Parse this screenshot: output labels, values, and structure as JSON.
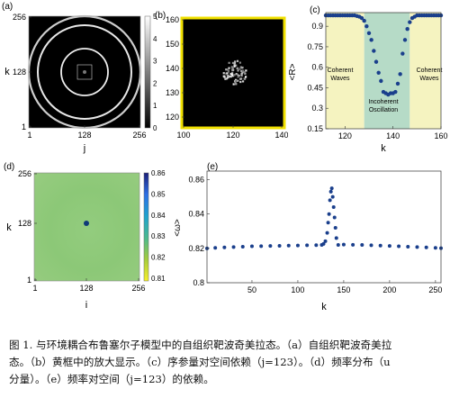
{
  "figure": {
    "panels": {
      "a": {
        "label": "(a)",
        "xlabel": "j",
        "ylabel": "k",
        "xticks": [
          "1",
          "128",
          "256"
        ],
        "yticks": [
          "1",
          "128",
          "256"
        ],
        "colorbar_ticks": [
          "0",
          "1",
          "2",
          "3",
          "4",
          "5"
        ]
      },
      "b": {
        "label": "(b)",
        "xticks": [
          "100",
          "120",
          "140"
        ],
        "yticks": [
          "120",
          "130",
          "140",
          "150",
          "160"
        ],
        "frame_color": "#f0e000"
      },
      "c": {
        "label": "(c)",
        "xlabel": "k",
        "ylabel": "<R>",
        "xticks": [
          "120",
          "140",
          "160"
        ],
        "yticks": [
          "0.15",
          "0.3",
          "0.45",
          "0.6",
          "0.75",
          "0.9"
        ],
        "annotations": {
          "left": [
            "Coherent",
            "Waves"
          ],
          "middle": [
            "Incoherent",
            "Oscillation"
          ],
          "right": [
            "Coherent",
            "Waves"
          ]
        },
        "shade_colors": {
          "coherent": "#f5f3c0",
          "incoherent": "#b6dbc7"
        }
      },
      "d": {
        "label": "(d)",
        "xlabel": "i",
        "ylabel": "k",
        "xticks": [
          "1",
          "128",
          "256"
        ],
        "yticks": [
          "1",
          "128",
          "256"
        ],
        "colorbar_ticks": [
          "0.86",
          "0.85",
          "0.84",
          "0.83",
          "0.82",
          "0.81"
        ]
      },
      "e": {
        "label": "(e)",
        "xlabel": "k",
        "ylabel": "<ω>",
        "xticks": [
          "50",
          "100",
          "150",
          "200",
          "250"
        ],
        "yticks": [
          "0.8",
          "0.82",
          "0.84",
          "0.86"
        ]
      }
    },
    "colors": {
      "marker": "#1a3f8c",
      "heat_fill": "#8ec97a"
    }
  },
  "chart_data": [
    {
      "panel": "c",
      "type": "scatter",
      "xlabel": "k",
      "ylabel": "<R>",
      "xlim": [
        112,
        160
      ],
      "ylim": [
        0.15,
        1.0
      ],
      "x": [
        112,
        113,
        114,
        115,
        116,
        117,
        118,
        119,
        120,
        121,
        122,
        123,
        124,
        125,
        126,
        127,
        128,
        129,
        130,
        131,
        132,
        133,
        134,
        135,
        136,
        137,
        138,
        139,
        140,
        141,
        142,
        143,
        144,
        145,
        146,
        147,
        148,
        149,
        150,
        151,
        152,
        153,
        154,
        155,
        156,
        157,
        158,
        159,
        160
      ],
      "y": [
        0.98,
        0.98,
        0.98,
        0.98,
        0.98,
        0.98,
        0.98,
        0.98,
        0.98,
        0.98,
        0.98,
        0.98,
        0.98,
        0.975,
        0.97,
        0.96,
        0.94,
        0.9,
        0.85,
        0.8,
        0.72,
        0.64,
        0.56,
        0.5,
        0.42,
        0.41,
        0.4,
        0.41,
        0.41,
        0.42,
        0.48,
        0.55,
        0.7,
        0.8,
        0.88,
        0.93,
        0.96,
        0.97,
        0.98,
        0.98,
        0.98,
        0.98,
        0.98,
        0.98,
        0.98,
        0.98,
        0.98,
        0.98,
        0.98
      ]
    },
    {
      "panel": "e",
      "type": "scatter",
      "xlabel": "k",
      "ylabel": "<ω>",
      "xlim": [
        1,
        256
      ],
      "ylim": [
        0.8,
        0.865
      ],
      "x": [
        1,
        10,
        20,
        30,
        40,
        50,
        60,
        70,
        80,
        90,
        100,
        110,
        120,
        126,
        128,
        130,
        132,
        133,
        134,
        135,
        136,
        137,
        138,
        139,
        140,
        141,
        142,
        144,
        150,
        160,
        170,
        180,
        190,
        200,
        210,
        220,
        230,
        240,
        250,
        256
      ],
      "y": [
        0.82,
        0.8203,
        0.8206,
        0.8208,
        0.821,
        0.8212,
        0.8213,
        0.8214,
        0.8215,
        0.8216,
        0.8217,
        0.8218,
        0.8219,
        0.822,
        0.8226,
        0.8242,
        0.829,
        0.835,
        0.84,
        0.848,
        0.853,
        0.855,
        0.85,
        0.844,
        0.838,
        0.832,
        0.826,
        0.822,
        0.8222,
        0.8221,
        0.822,
        0.8218,
        0.8216,
        0.8214,
        0.8212,
        0.821,
        0.8208,
        0.8206,
        0.8203,
        0.8201
      ]
    }
  ],
  "caption": {
    "lines": [
      "图 1. 与环境耦合布鲁塞尔子模型中的自组织靶波奇美拉态。（a）自组织靶波奇美拉",
      "态。（b）黄框中的放大显示。（c）序参量对空间依赖（j=123）。（d）频率分布（u",
      "分量）。（e）频率对空间（j=123）的依赖。"
    ]
  }
}
